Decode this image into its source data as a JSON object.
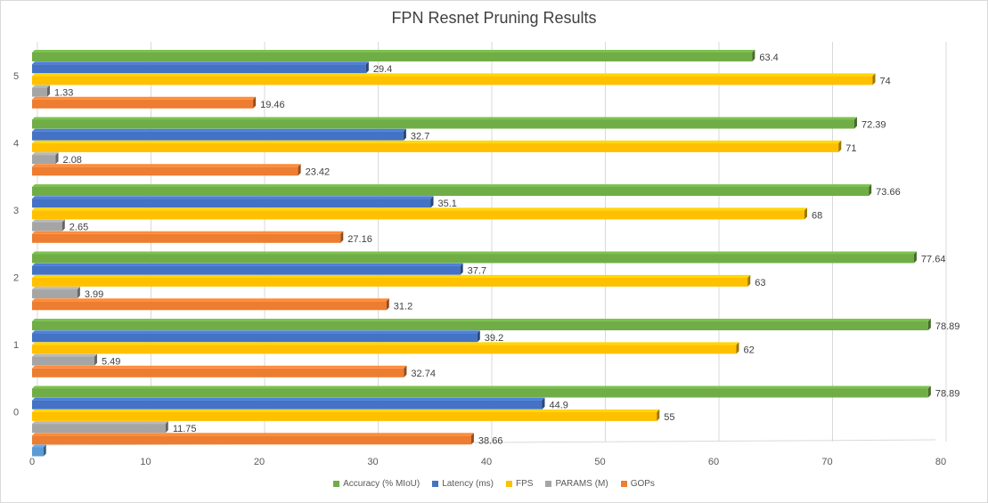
{
  "chart_data": {
    "type": "bar",
    "orientation": "horizontal",
    "title": "FPN Resnet Pruning Results",
    "categories": [
      "0",
      "1",
      "2",
      "3",
      "4",
      "5"
    ],
    "series": [
      {
        "name": "Accuracy (% MIoU)",
        "color": "#70ad47",
        "values": [
          78.89,
          78.89,
          77.64,
          73.66,
          72.39,
          63.4
        ]
      },
      {
        "name": "Latency (ms)",
        "color": "#4472c4",
        "values": [
          44.9,
          39.2,
          37.7,
          35.1,
          32.7,
          29.4
        ]
      },
      {
        "name": "FPS",
        "color": "#ffc000",
        "values": [
          55,
          62,
          63,
          68,
          71,
          74
        ]
      },
      {
        "name": "PARAMS (M)",
        "color": "#a5a5a5",
        "values": [
          11.75,
          5.49,
          3.99,
          2.65,
          2.08,
          1.33
        ]
      },
      {
        "name": "GOPs",
        "color": "#ed7d31",
        "values": [
          38.66,
          32.74,
          31.2,
          27.16,
          23.42,
          19.46
        ]
      }
    ],
    "extra_bar": {
      "category": "0",
      "color": "#5b9bd5",
      "value": 1
    },
    "xlim": [
      0,
      80
    ],
    "xticks": [
      0,
      10,
      20,
      30,
      40,
      50,
      60,
      70,
      80
    ],
    "grid": true,
    "legend_position": "bottom"
  }
}
